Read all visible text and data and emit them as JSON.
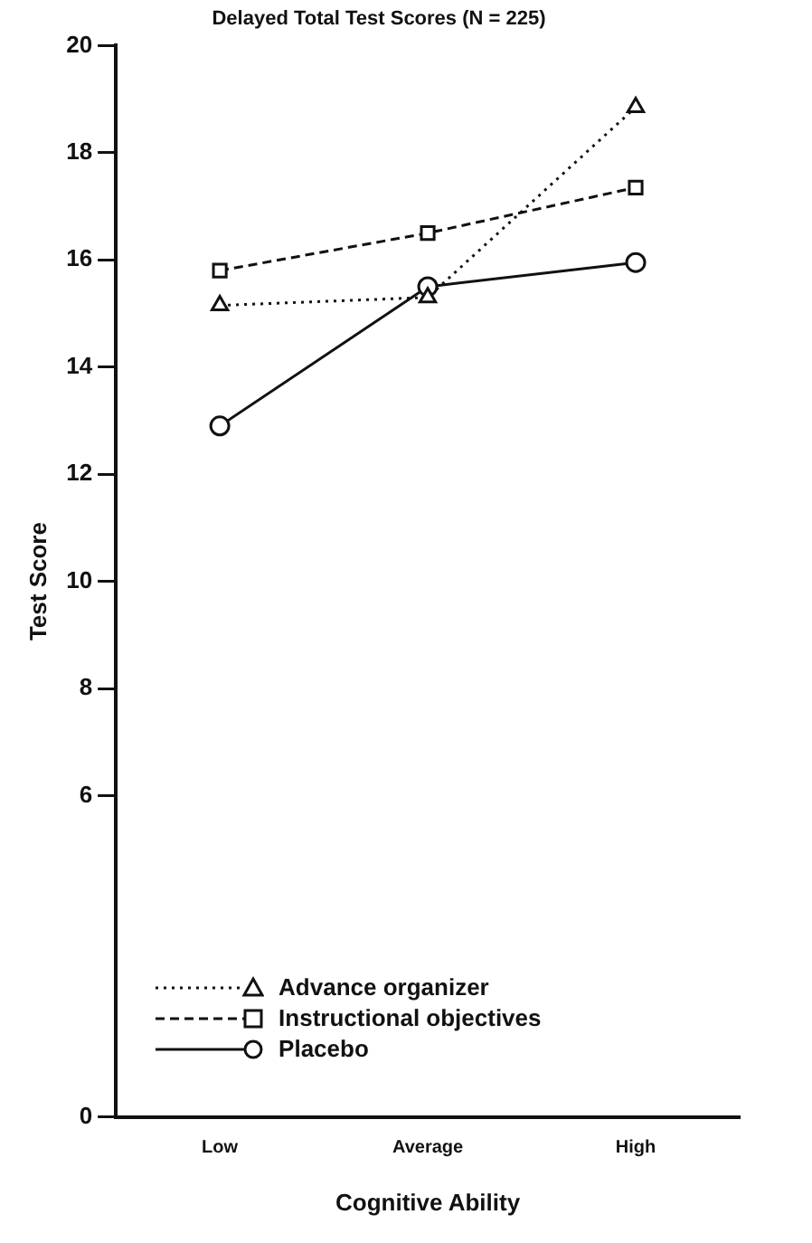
{
  "chart_data": {
    "type": "line",
    "title": "Delayed Total Test Scores (N = 225)",
    "xlabel": "Cognitive Ability",
    "ylabel": "Test Score",
    "categories": [
      "Low",
      "Average",
      "High"
    ],
    "series": [
      {
        "name": "Advance organizer",
        "color": "#111111",
        "marker": "triangle",
        "line_style": "dotted",
        "values": [
          15.15,
          15.3,
          18.85
        ]
      },
      {
        "name": "Instructional objectives",
        "color": "#111111",
        "marker": "square",
        "line_style": "dashed",
        "values": [
          15.8,
          16.5,
          17.35
        ]
      },
      {
        "name": "Placebo",
        "color": "#111111",
        "marker": "circle",
        "line_style": "solid",
        "values": [
          12.9,
          15.5,
          15.95
        ]
      }
    ],
    "ylim": [
      0,
      20
    ],
    "yticks": [
      0,
      6,
      8,
      10,
      12,
      14,
      16,
      18,
      20
    ],
    "grid": false,
    "legend": "bottom left"
  }
}
